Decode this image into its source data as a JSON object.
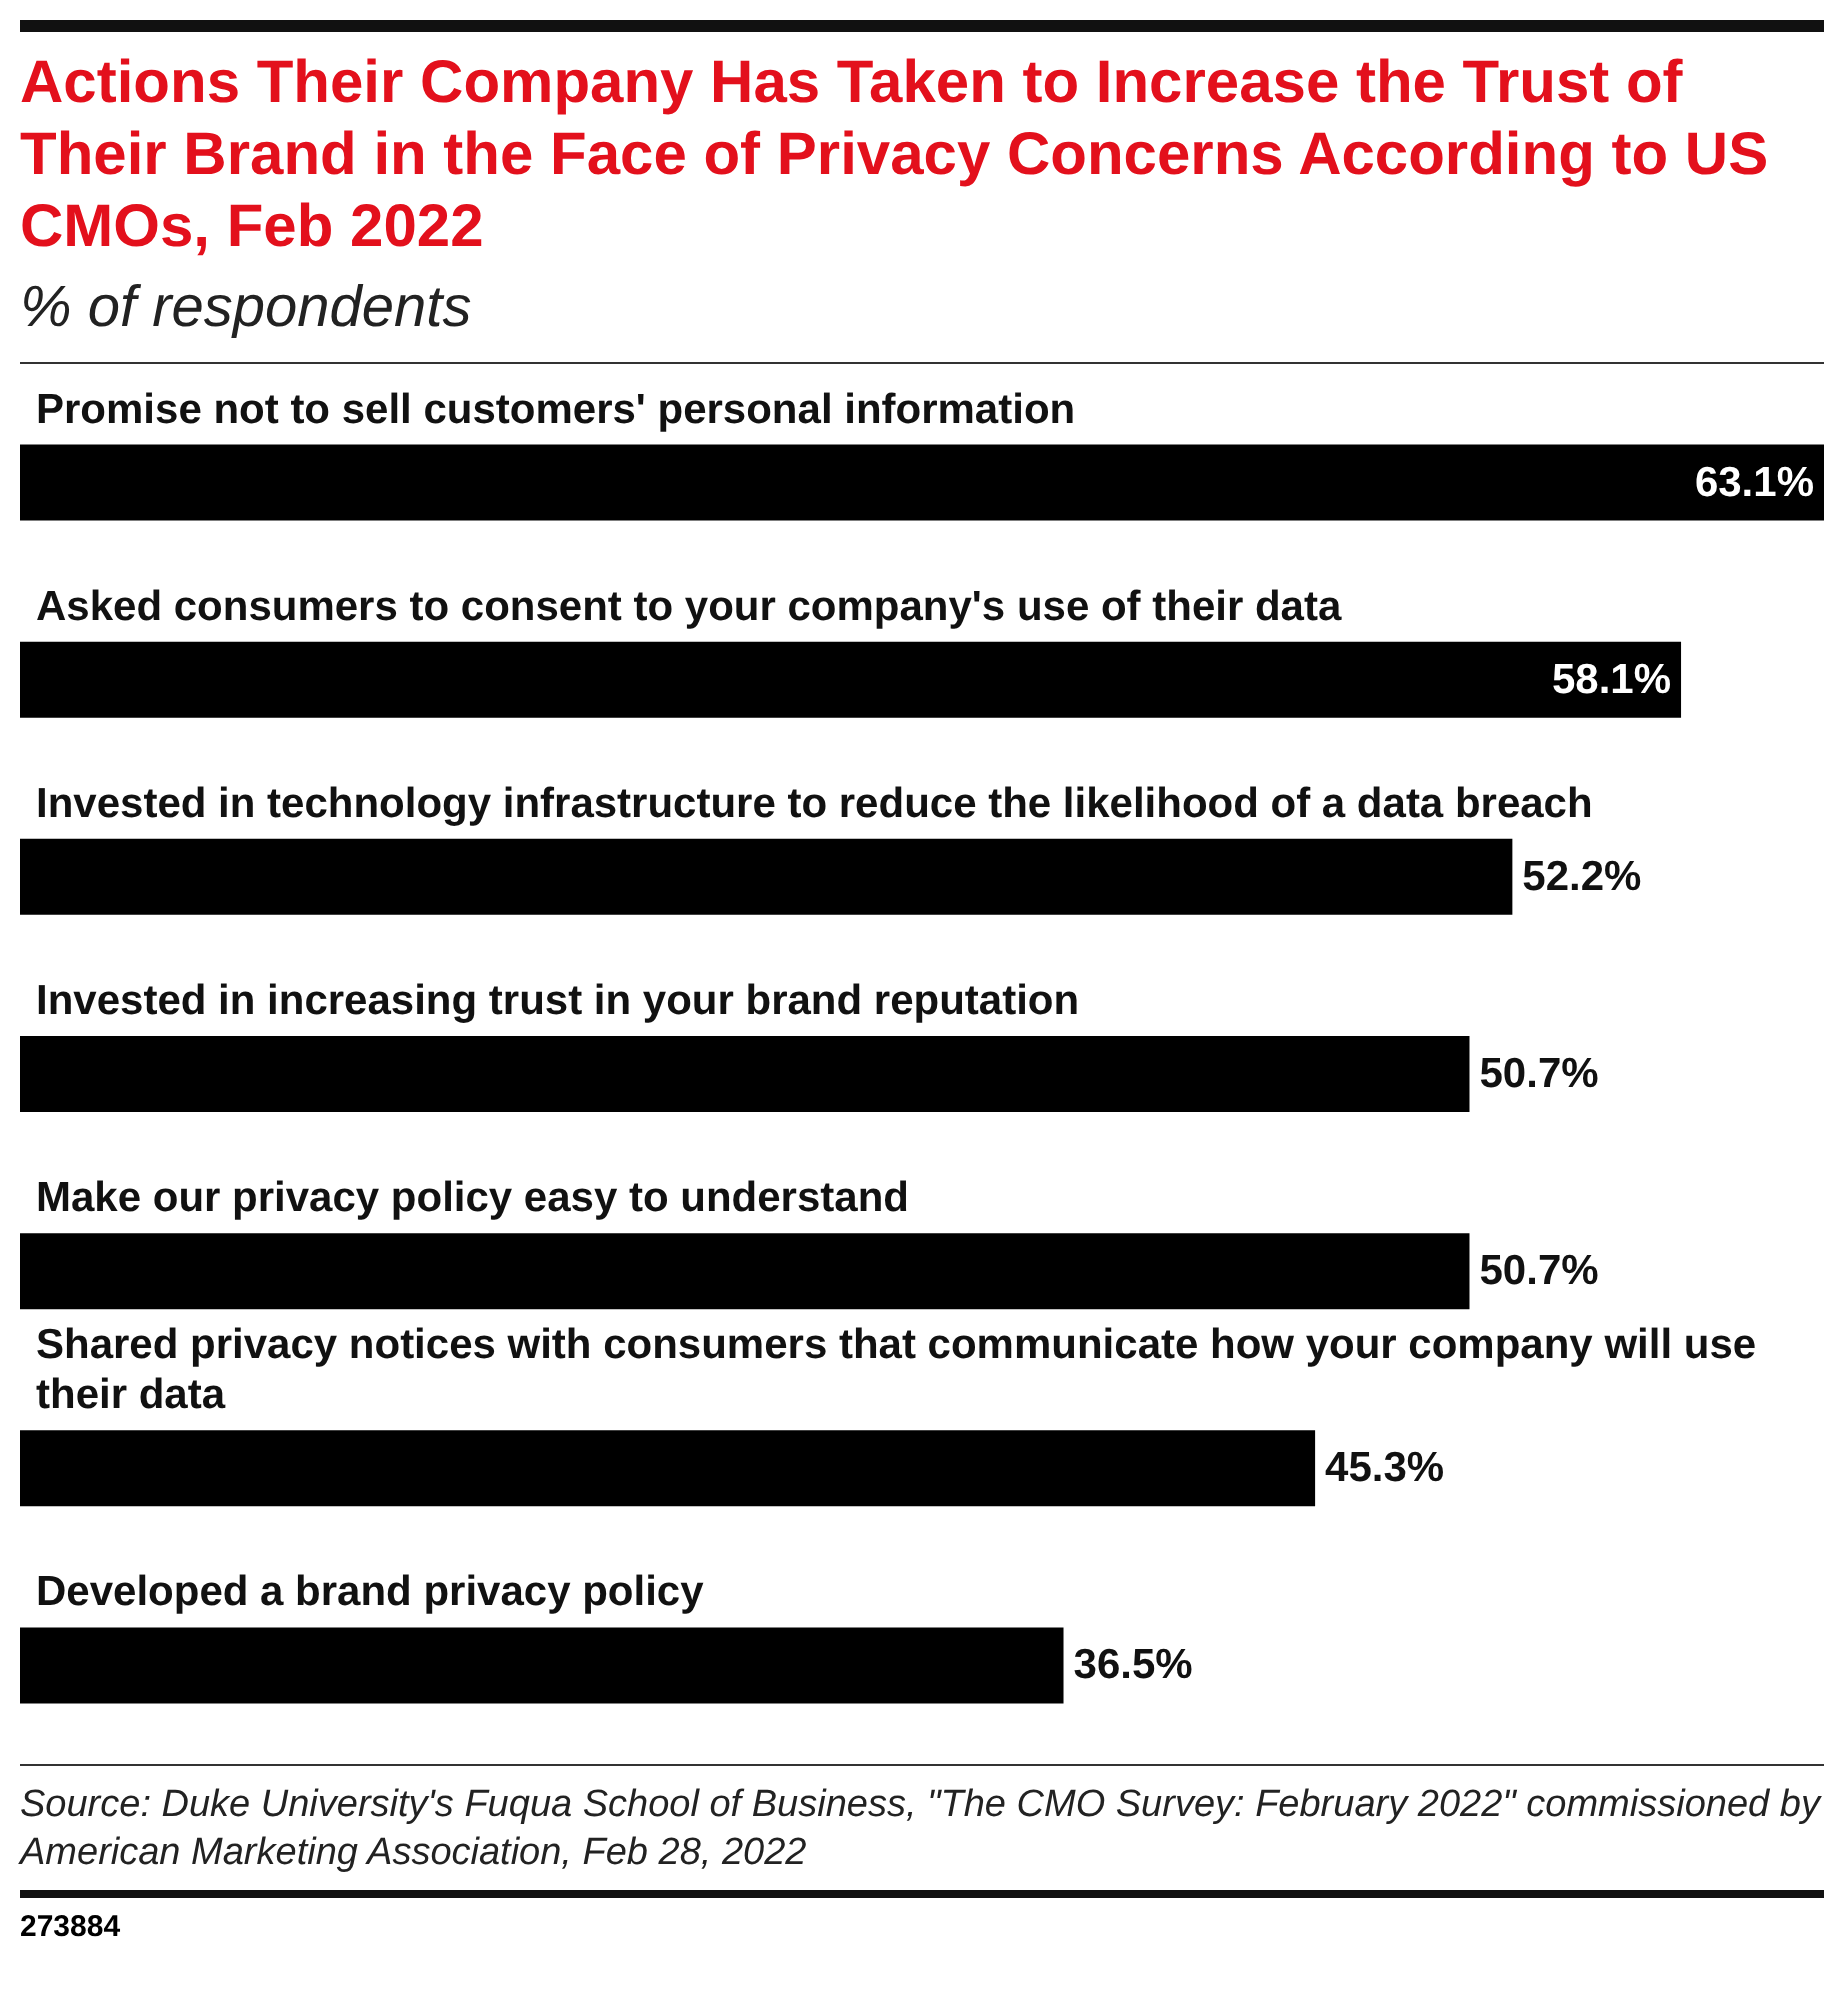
{
  "chart_data": {
    "type": "bar",
    "orientation": "horizontal",
    "title": "Actions Their Company Has Taken to Increase the Trust of Their Brand in the Face of Privacy Concerns According to US CMOs, Feb 2022",
    "subtitle": "% of respondents",
    "categories": [
      "Promise not to sell customers' personal information",
      "Asked consumers to consent to your company's use of their data",
      "Invested in technology infrastructure to reduce the likelihood of a data breach",
      "Invested in increasing trust in your brand reputation",
      "Make our privacy policy easy to understand",
      "Shared privacy notices with consumers that communicate how your company will use their data",
      "Developed a brand privacy policy"
    ],
    "values": [
      63.1,
      58.1,
      52.2,
      50.7,
      50.7,
      45.3,
      36.5
    ],
    "value_labels": [
      "63.1%",
      "58.1%",
      "52.2%",
      "50.7%",
      "50.7%",
      "45.3%",
      "36.5%"
    ],
    "color": "#000000",
    "annotations": [
      "Source: Duke University's Fuqua School of Business, \"The CMO Survey: February 2022\" commissioned by American Marketing Association, Feb 28, 2022",
      "273884"
    ]
  }
}
